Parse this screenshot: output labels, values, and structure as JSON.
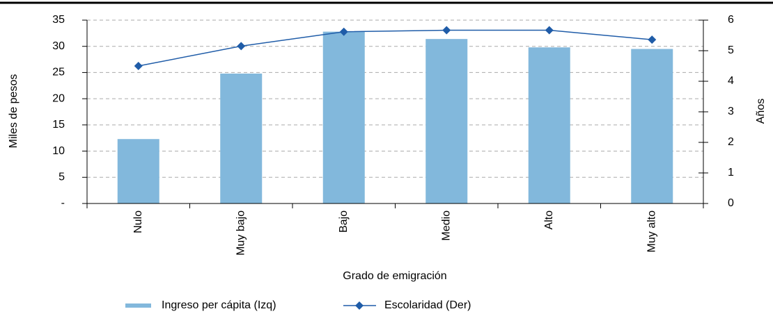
{
  "chart_data": {
    "type": "bar",
    "xlabel": "Grado de emigración",
    "ylabel": "Miles de pesos",
    "y2label": "Años",
    "categories": [
      "Nulo",
      "Muy bajo",
      "Bajo",
      "Medio",
      "Alto",
      "Muy alto"
    ],
    "series": [
      {
        "name": "Ingreso per cápita (Izq)",
        "type": "bar",
        "color": "#82b8dc",
        "values": [
          12.3,
          24.8,
          32.8,
          31.4,
          29.8,
          29.5
        ]
      },
      {
        "name": "Escolaridad (Der)",
        "type": "line",
        "axis": "y2",
        "color": "#1f5ca8",
        "values": [
          4.5,
          5.15,
          5.62,
          5.67,
          5.67,
          5.36
        ]
      }
    ],
    "ylim": [
      0,
      35
    ],
    "yticks": [
      {
        "value": 0,
        "label": "-"
      },
      5,
      10,
      15,
      20,
      25,
      30,
      35
    ],
    "y2lim": [
      0,
      6
    ],
    "y2ticks": [
      0,
      1,
      2,
      3,
      4,
      5,
      6
    ],
    "grid": true,
    "legend": "bottom"
  }
}
